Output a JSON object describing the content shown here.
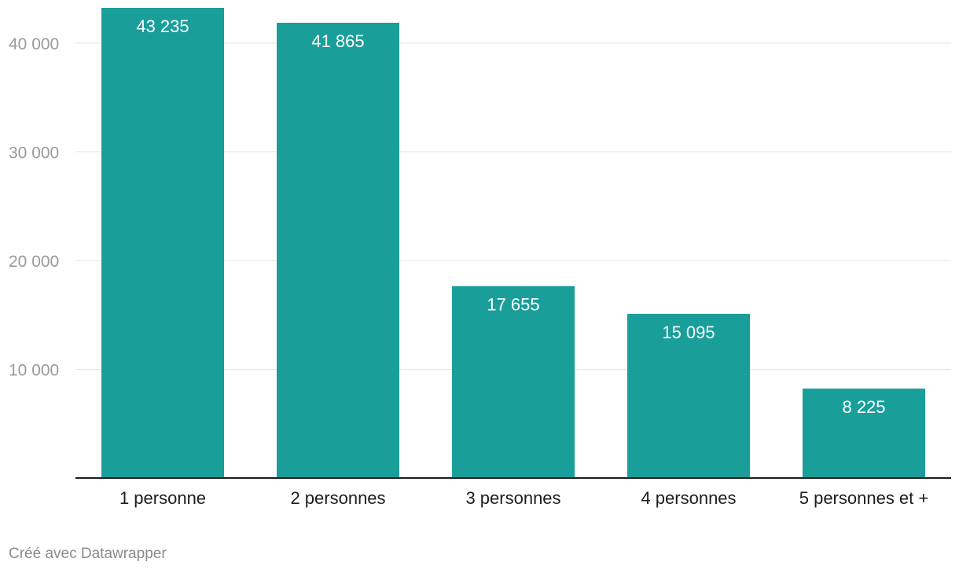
{
  "chart_data": {
    "type": "bar",
    "categories": [
      "1 personne",
      "2 personnes",
      "3 personnes",
      "4 personnes",
      "5 personnes et +"
    ],
    "values": [
      43235,
      41865,
      17655,
      15095,
      8225
    ],
    "value_labels": [
      "43 235",
      "41 865",
      "17 655",
      "15 095",
      "8 225"
    ],
    "y_ticks": [
      10000,
      20000,
      30000,
      40000
    ],
    "y_tick_labels": [
      "10 000",
      "20 000",
      "30 000",
      "40 000"
    ],
    "ylim": [
      0,
      43235
    ],
    "grid": true,
    "legend": "none",
    "title": "",
    "xlabel": "",
    "ylabel": ""
  },
  "colors": {
    "bar": "#1a9e9a",
    "grid": "#e2e2e2",
    "axis": "#1d1d1d",
    "y_tick_text": "#9a9a9a",
    "footer_text": "#8a8a8a"
  },
  "footer": {
    "credit": "Créé avec Datawrapper"
  }
}
